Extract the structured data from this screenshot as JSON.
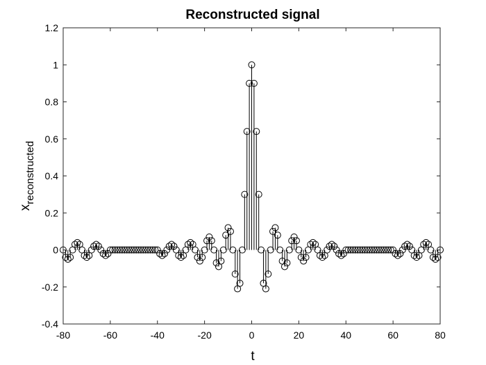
{
  "chart_data": {
    "type": "stem",
    "title": "Reconstructed signal",
    "xlabel": "t",
    "ylabel_main": "x",
    "ylabel_sub": "reconstructed",
    "xlim": [
      -80,
      80
    ],
    "ylim": [
      -0.4,
      1.2
    ],
    "xticks": [
      -80,
      -60,
      -40,
      -20,
      0,
      20,
      40,
      60,
      80
    ],
    "yticks": [
      -0.4,
      -0.2,
      0,
      0.2,
      0.4,
      0.6,
      0.8,
      1,
      1.2
    ],
    "ytick_labels": [
      "-0.4",
      "-0.2",
      "0",
      "0.2",
      "0.4",
      "0.6",
      "0.8",
      "1",
      "1.2"
    ],
    "grid": false,
    "marker": "open-circle",
    "color": "#000000",
    "series": [
      {
        "x": [
          -80,
          -79,
          -78,
          -77,
          -76,
          -75,
          -74,
          -73,
          -72,
          -71,
          -70,
          -69,
          -68,
          -67,
          -66,
          -65,
          -64,
          -63,
          -62,
          -61,
          -60,
          -59,
          -58,
          -57,
          -56,
          -55,
          -54,
          -53,
          -52,
          -51,
          -50,
          -49,
          -48,
          -47,
          -46,
          -45,
          -44,
          -43,
          -42,
          -41,
          -40,
          -39,
          -38,
          -37,
          -36,
          -35,
          -34,
          -33,
          -32,
          -31,
          -30,
          -29,
          -28,
          -27,
          -26,
          -25,
          -24,
          -23,
          -22,
          -21,
          -20,
          -19,
          -18,
          -17,
          -16,
          -15,
          -14,
          -13,
          -12,
          -11,
          -10,
          -9,
          -8,
          -7,
          -6,
          -5,
          -4,
          -3,
          -2,
          -1,
          0,
          1,
          2,
          3,
          4,
          5,
          6,
          7,
          8,
          9,
          10,
          11,
          12,
          13,
          14,
          15,
          16,
          17,
          18,
          19,
          20,
          21,
          22,
          23,
          24,
          25,
          26,
          27,
          28,
          29,
          30,
          31,
          32,
          33,
          34,
          35,
          36,
          37,
          38,
          39,
          40,
          41,
          42,
          43,
          44,
          45,
          46,
          47,
          48,
          49,
          50,
          51,
          52,
          53,
          54,
          55,
          56,
          57,
          58,
          59,
          60,
          61,
          62,
          63,
          64,
          65,
          66,
          67,
          68,
          69,
          70,
          71,
          72,
          73,
          74,
          75,
          76,
          77,
          78,
          79,
          80
        ],
        "y": [
          0,
          -0.04,
          -0.05,
          -0.04,
          0,
          0.03,
          0.04,
          0.03,
          0,
          -0.03,
          -0.04,
          -0.03,
          0,
          0.02,
          0.03,
          0.02,
          0,
          -0.02,
          -0.03,
          -0.02,
          0,
          0,
          0,
          0,
          0,
          0,
          0,
          0,
          0,
          0,
          0,
          0,
          0,
          0,
          0,
          0,
          0,
          0,
          0,
          0,
          0,
          -0.02,
          -0.03,
          -0.02,
          0,
          0.02,
          0.03,
          0.02,
          0,
          -0.03,
          -0.04,
          -0.03,
          0,
          0.03,
          0.04,
          0.03,
          0,
          -0.04,
          -0.06,
          -0.04,
          0,
          0.05,
          0.07,
          0.05,
          0,
          -0.07,
          -0.09,
          -0.06,
          0,
          0.08,
          0.12,
          0.1,
          0,
          -0.13,
          -0.21,
          -0.18,
          0,
          0.3,
          0.64,
          0.9,
          1,
          0.9,
          0.64,
          0.3,
          0,
          -0.18,
          -0.21,
          -0.13,
          0,
          0.1,
          0.12,
          0.08,
          0,
          -0.06,
          -0.09,
          -0.07,
          0,
          0.05,
          0.07,
          0.05,
          0,
          -0.04,
          -0.06,
          -0.04,
          0,
          0.03,
          0.04,
          0.03,
          0,
          -0.03,
          -0.04,
          -0.03,
          0,
          0.02,
          0.03,
          0.02,
          0,
          -0.02,
          -0.03,
          -0.02,
          0,
          0,
          0,
          0,
          0,
          0,
          0,
          0,
          0,
          0,
          0,
          0,
          0,
          0,
          0,
          0,
          0,
          0,
          0,
          0,
          0,
          -0.02,
          -0.03,
          -0.02,
          0,
          0.02,
          0.03,
          0.02,
          0,
          -0.03,
          -0.04,
          -0.03,
          0,
          0.03,
          0.04,
          0.03,
          0,
          -0.04,
          -0.05,
          -0.04,
          0
        ]
      }
    ]
  }
}
